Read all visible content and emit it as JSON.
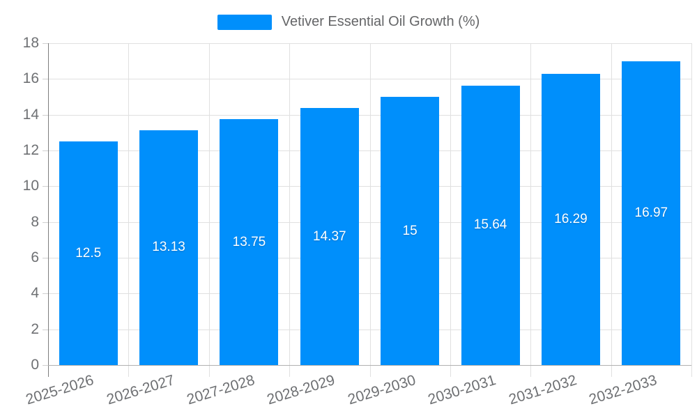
{
  "legend": {
    "label": "Vetiver Essential Oil Growth (%)"
  },
  "chart_data": {
    "type": "bar",
    "title": "Vetiver Essential Oil Growth (%)",
    "legend_position": "top",
    "grid": true,
    "categories": [
      "2025-2026",
      "2026-2027",
      "2027-2028",
      "2028-2029",
      "2029-2030",
      "2030-2031",
      "2031-2032",
      "2032-2033"
    ],
    "values": [
      12.5,
      13.13,
      13.75,
      14.37,
      15,
      15.64,
      16.29,
      16.97
    ],
    "value_labels": [
      "12.5",
      "13.13",
      "13.75",
      "14.37",
      "15",
      "15.64",
      "16.29",
      "16.97"
    ],
    "xlabel": "",
    "ylabel": "",
    "ylim": [
      0,
      18
    ],
    "yticks": [
      0,
      2,
      4,
      6,
      8,
      10,
      12,
      14,
      16,
      18
    ],
    "colors": {
      "bar": "#008FFB",
      "bar_value_text": "#ffffff",
      "axis_label": "#6e7073",
      "legend_text": "#646567",
      "gridline": "#e0e0e0",
      "y_axis_line": "#7e7e7e",
      "x_axis_line": "#b1b1b1"
    }
  }
}
